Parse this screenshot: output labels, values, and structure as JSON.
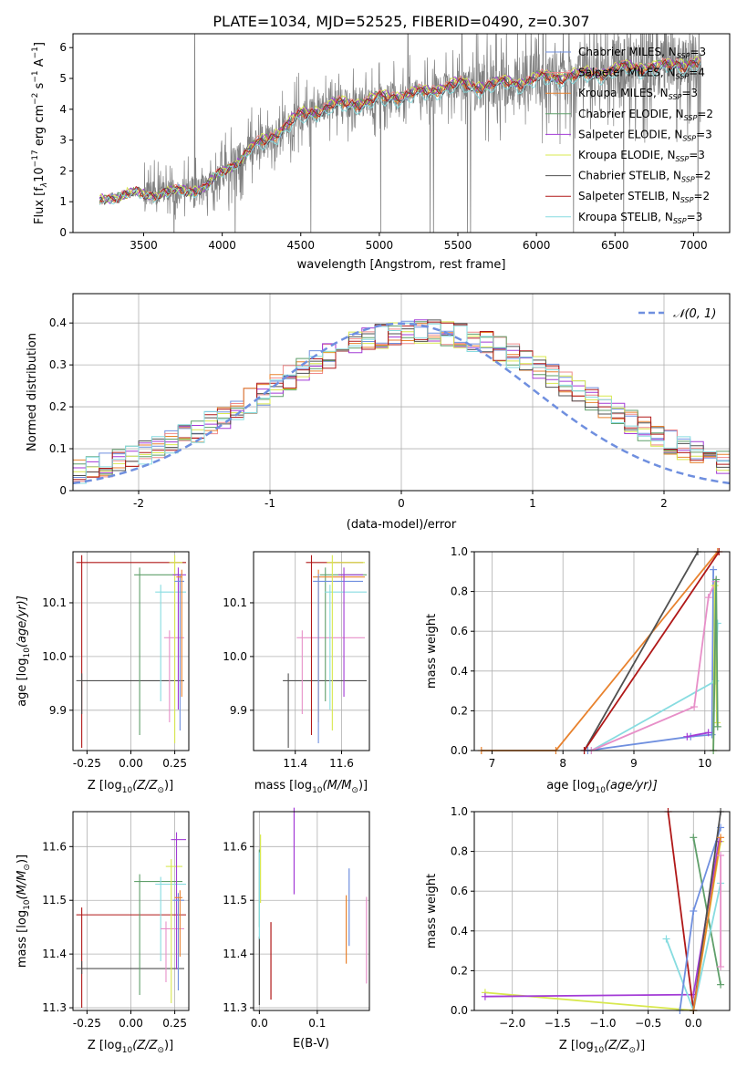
{
  "figure": {
    "title": "PLATE=1034, MJD=52525, FIBERID=0490, z=0.307",
    "series_colors": {
      "Chabrier MILES": "#6f8fdf",
      "Salpeter MILES": "#ef8a8a",
      "Kroupa MILES": "#e8822e",
      "Chabrier ELODIE": "#5f9f6a",
      "Salpeter ELODIE": "#a33bd6",
      "Kroupa ELODIE": "#d8e84f",
      "Chabrier STELIB": "#505050",
      "Salpeter STELIB": "#b01818",
      "Kroupa STELIB": "#87dce0",
      "data": "#7f7f7f",
      "pink": "#e78fc8"
    }
  },
  "chart_data": [
    {
      "type": "line",
      "panel": "spectrum",
      "xlabel": "wavelength [Angstrom, rest frame]",
      "ylabel_parts": [
        "Flux [f",
        "λ",
        "10",
        "−17",
        " erg cm",
        "−2",
        " s",
        "−1",
        " A",
        "−1",
        "]"
      ],
      "xlim": [
        3050,
        7230
      ],
      "ylim": [
        0,
        6.45
      ],
      "xticks": [
        3500,
        4000,
        4500,
        5000,
        5500,
        6000,
        6500,
        7000
      ],
      "yticks": [
        0,
        1,
        2,
        3,
        4,
        5,
        6
      ],
      "legend_position": "top-right",
      "legend": [
        {
          "name": "Chabrier MILES",
          "nssp": "3"
        },
        {
          "name": "Salpeter MILES",
          "nssp": "4"
        },
        {
          "name": "Kroupa MILES",
          "nssp": "3"
        },
        {
          "name": "Chabrier ELODIE",
          "nssp": "2"
        },
        {
          "name": "Salpeter ELODIE",
          "nssp": "3"
        },
        {
          "name": "Kroupa ELODIE",
          "nssp": "3"
        },
        {
          "name": "Chabrier STELIB",
          "nssp": "2"
        },
        {
          "name": "Salpeter STELIB",
          "nssp": "2"
        },
        {
          "name": "Kroupa STELIB",
          "nssp": "3"
        }
      ],
      "continuum_x": [
        3220,
        3300,
        3500,
        3700,
        3900,
        4000,
        4100,
        4200,
        4300,
        4400,
        4500,
        4600,
        4700,
        4800,
        4900,
        5000,
        5100,
        5200,
        5300,
        5400,
        5500,
        5600,
        5700,
        5800,
        5900,
        6000,
        6100,
        6200,
        6300,
        6400,
        6500,
        6600,
        6700,
        6800,
        6900,
        7000,
        7050
      ],
      "continuum_y": [
        1.05,
        1.2,
        1.25,
        1.3,
        1.5,
        1.95,
        2.35,
        2.75,
        3.1,
        3.45,
        3.8,
        4.0,
        4.1,
        4.2,
        4.25,
        4.35,
        4.45,
        4.5,
        4.55,
        4.75,
        4.8,
        4.75,
        4.8,
        4.85,
        4.9,
        5.0,
        5.05,
        5.1,
        5.1,
        5.2,
        5.3,
        5.35,
        5.4,
        5.35,
        5.5,
        5.5,
        5.5
      ]
    },
    {
      "type": "histogram",
      "panel": "residuals",
      "xlabel": "(data-model)/error",
      "ylabel": "Normed distribution",
      "xlim": [
        -2.5,
        2.5
      ],
      "ylim": [
        0,
        0.47
      ],
      "xticks": [
        -2,
        -1,
        0,
        1,
        2
      ],
      "yticks": [
        0.0,
        0.1,
        0.2,
        0.3,
        0.4
      ],
      "legend_position": "top-right",
      "legend": [
        {
          "name": "𝒩(0, 1)",
          "style": "dashed"
        }
      ],
      "normal_reference": {
        "mean": 0,
        "sigma": 1
      }
    },
    {
      "type": "scatter",
      "panel": "age-vs-Z",
      "xlabel_parts": [
        "Z [log",
        "10",
        "(Z/Z",
        "⊙",
        ")]"
      ],
      "ylabel_parts": [
        "age  [log",
        "10",
        "(age/yr)]"
      ],
      "xlim": [
        -0.33,
        0.33
      ],
      "ylim": [
        9.825,
        10.195
      ],
      "xticks": [
        "-0.25",
        "0.00",
        "0.25"
      ],
      "yticks": [
        "9.9",
        "10.0",
        "10.1"
      ],
      "points": [
        {
          "s": "Salpeter STELIB",
          "x": -0.28,
          "y": 10.175
        },
        {
          "s": "Chabrier STELIB",
          "x": -0.28,
          "y": 9.955
        },
        {
          "s": "Chabrier ELODIE",
          "x": 0.05,
          "y": 10.152
        },
        {
          "s": "Kroupa STELIB",
          "x": 0.17,
          "y": 10.12
        },
        {
          "s": "pink",
          "x": 0.22,
          "y": 10.035
        },
        {
          "s": "Kroupa ELODIE",
          "x": 0.25,
          "y": 10.175
        },
        {
          "s": "Salpeter ELODIE",
          "x": 0.27,
          "y": 10.152
        },
        {
          "s": "Chabrier MILES",
          "x": 0.28,
          "y": 10.14
        },
        {
          "s": "Kroupa MILES",
          "x": 0.29,
          "y": 10.148
        }
      ]
    },
    {
      "type": "scatter",
      "panel": "age-vs-mass",
      "xlabel_parts": [
        "mass [log",
        "10",
        "(M/M",
        "⊙",
        ")]"
      ],
      "xlim": [
        11.22,
        11.72
      ],
      "ylim": [
        9.825,
        10.195
      ],
      "xticks": [
        "11.4",
        "11.6"
      ],
      "yticks": [
        "9.9",
        "10.0",
        "10.1"
      ],
      "points": [
        {
          "s": "Chabrier STELIB",
          "x": 11.37,
          "y": 9.955
        },
        {
          "s": "pink",
          "x": 11.43,
          "y": 10.035
        },
        {
          "s": "Salpeter STELIB",
          "x": 11.47,
          "y": 10.175
        },
        {
          "s": "Chabrier ELODIE",
          "x": 11.53,
          "y": 10.152
        },
        {
          "s": "Kroupa MILES",
          "x": 11.5,
          "y": 10.148
        },
        {
          "s": "Chabrier MILES",
          "x": 11.5,
          "y": 10.14
        },
        {
          "s": "Kroupa STELIB",
          "x": 11.55,
          "y": 10.12
        },
        {
          "s": "Kroupa ELODIE",
          "x": 11.56,
          "y": 10.175
        },
        {
          "s": "Salpeter ELODIE",
          "x": 11.61,
          "y": 10.152
        }
      ]
    },
    {
      "type": "line",
      "panel": "mass-weight-vs-age",
      "xlabel_parts": [
        "age  [log",
        "10",
        "(age/yr)]"
      ],
      "ylabel": "mass weight",
      "xlim": [
        6.75,
        10.35
      ],
      "ylim": [
        0,
        1
      ],
      "xticks": [
        "7",
        "8",
        "9",
        "10"
      ],
      "yticks": [
        "0.0",
        "0.2",
        "0.4",
        "0.6",
        "0.8",
        "1.0"
      ],
      "series": [
        {
          "s": "Kroupa MILES",
          "x": [
            6.85,
            7.9,
            10.18
          ],
          "y": [
            0.0,
            0.0,
            1.0
          ]
        },
        {
          "s": "Chabrier STELIB",
          "x": [
            8.3,
            9.9
          ],
          "y": [
            0.0,
            1.0
          ]
        },
        {
          "s": "Salpeter STELIB",
          "x": [
            8.3,
            10.2
          ],
          "y": [
            0.0,
            1.0
          ]
        },
        {
          "s": "Chabrier MILES",
          "x": [
            8.35,
            9.8,
            10.1,
            10.12
          ],
          "y": [
            0.0,
            0.07,
            0.08,
            0.91
          ]
        },
        {
          "s": "Salpeter ELODIE",
          "x": [
            9.75,
            10.05
          ],
          "y": [
            0.07,
            0.09
          ]
        },
        {
          "s": "Kroupa STELIB",
          "x": [
            8.4,
            10.15,
            10.18
          ],
          "y": [
            0.0,
            0.35,
            0.64
          ]
        },
        {
          "s": "pink",
          "x": [
            8.4,
            9.85,
            10.05,
            10.15
          ],
          "y": [
            0.0,
            0.22,
            0.77,
            0.85
          ]
        },
        {
          "s": "Kroupa ELODIE",
          "x": [
            10.12,
            10.14,
            10.17
          ],
          "y": [
            0.0,
            0.83,
            0.14
          ]
        },
        {
          "s": "Chabrier ELODIE",
          "x": [
            10.12,
            10.16,
            10.18
          ],
          "y": [
            0.0,
            0.86,
            0.12
          ]
        }
      ]
    },
    {
      "type": "scatter",
      "panel": "mass-vs-Z",
      "xlabel_parts": [
        "Z [log",
        "10",
        "(Z/Z",
        "⊙",
        ")]"
      ],
      "ylabel_parts": [
        "mass [log",
        "10",
        "(M/M",
        "⊙",
        ")]"
      ],
      "xlim": [
        -0.33,
        0.33
      ],
      "ylim": [
        11.295,
        11.665
      ],
      "xticks": [
        "-0.25",
        "0.00",
        "0.25"
      ],
      "yticks": [
        "11.3",
        "11.4",
        "11.5",
        "11.6"
      ],
      "points": [
        {
          "s": "Salpeter STELIB",
          "x": -0.28,
          "y": 11.473
        },
        {
          "s": "Chabrier STELIB",
          "x": -0.28,
          "y": 11.373
        },
        {
          "s": "Chabrier ELODIE",
          "x": 0.05,
          "y": 11.535
        },
        {
          "s": "Kroupa STELIB",
          "x": 0.17,
          "y": 11.53
        },
        {
          "s": "pink",
          "x": 0.2,
          "y": 11.447
        },
        {
          "s": "Kroupa ELODIE",
          "x": 0.23,
          "y": 11.563
        },
        {
          "s": "Salpeter ELODIE",
          "x": 0.26,
          "y": 11.613
        },
        {
          "s": "Chabrier MILES",
          "x": 0.27,
          "y": 11.5
        },
        {
          "s": "Kroupa MILES",
          "x": 0.28,
          "y": 11.505
        }
      ]
    },
    {
      "type": "scatter",
      "panel": "mass-vs-EBV",
      "xlabel": "E(B-V)",
      "xlim": [
        -0.01,
        0.19
      ],
      "ylim": [
        11.295,
        11.665
      ],
      "xticks": [
        "0.0",
        "0.1"
      ],
      "yticks": [
        "11.3",
        "11.4",
        "11.5",
        "11.6"
      ],
      "points": [
        {
          "s": "Chabrier STELIB",
          "x": 0.0,
          "y": 11.373
        },
        {
          "s": "Chabrier ELODIE",
          "x": 0.0,
          "y": 11.535
        },
        {
          "s": "Kroupa STELIB",
          "x": 0.0,
          "y": 11.53
        },
        {
          "s": "Kroupa ELODIE",
          "x": 0.002,
          "y": 11.563
        },
        {
          "s": "Salpeter STELIB",
          "x": 0.02,
          "y": 11.4
        },
        {
          "s": "Salpeter ELODIE",
          "x": 0.06,
          "y": 11.613
        },
        {
          "s": "Kroupa MILES",
          "x": 0.15,
          "y": 11.45
        },
        {
          "s": "Chabrier MILES",
          "x": 0.155,
          "y": 11.5
        },
        {
          "s": "pink",
          "x": 0.185,
          "y": 11.447
        }
      ]
    },
    {
      "type": "line",
      "panel": "mass-weight-vs-Z",
      "xlabel_parts": [
        "Z [log",
        "10",
        "(Z/Z",
        "⊙",
        ")]"
      ],
      "ylabel": "mass weight",
      "xlim": [
        -2.42,
        0.4
      ],
      "ylim": [
        0,
        1
      ],
      "xticks": [
        "−2.0",
        "−1.5",
        "−1.0",
        "−0.5",
        "0.0"
      ],
      "yticks": [
        "0.0",
        "0.2",
        "0.4",
        "0.6",
        "0.8",
        "1.0"
      ],
      "series": [
        {
          "s": "Kroupa ELODIE",
          "x": [
            -2.3,
            0.0,
            0.3
          ],
          "y": [
            0.09,
            0.0,
            0.85
          ]
        },
        {
          "s": "Salpeter ELODIE",
          "x": [
            -2.3,
            0.0,
            0.28
          ],
          "y": [
            0.07,
            0.08,
            0.85
          ]
        },
        {
          "s": "Salpeter STELIB",
          "x": [
            -0.28,
            0.0
          ],
          "y": [
            1.0,
            0.0
          ]
        },
        {
          "s": "Chabrier ELODIE",
          "x": [
            0.0,
            0.3
          ],
          "y": [
            0.87,
            0.13
          ]
        },
        {
          "s": "Kroupa STELIB",
          "x": [
            -0.3,
            0.0,
            0.3
          ],
          "y": [
            0.36,
            0.0,
            0.64
          ]
        },
        {
          "s": "Chabrier MILES",
          "x": [
            -0.15,
            0.0,
            0.3
          ],
          "y": [
            0.0,
            0.5,
            0.92
          ]
        },
        {
          "s": "Chabrier STELIB",
          "x": [
            0.0,
            0.3
          ],
          "y": [
            0.0,
            1.0
          ]
        },
        {
          "s": "Kroupa MILES",
          "x": [
            0.0,
            0.3
          ],
          "y": [
            0.0,
            0.87
          ]
        },
        {
          "s": "pink",
          "x": [
            0.3,
            0.3
          ],
          "y": [
            0.22,
            0.78
          ]
        }
      ]
    }
  ]
}
